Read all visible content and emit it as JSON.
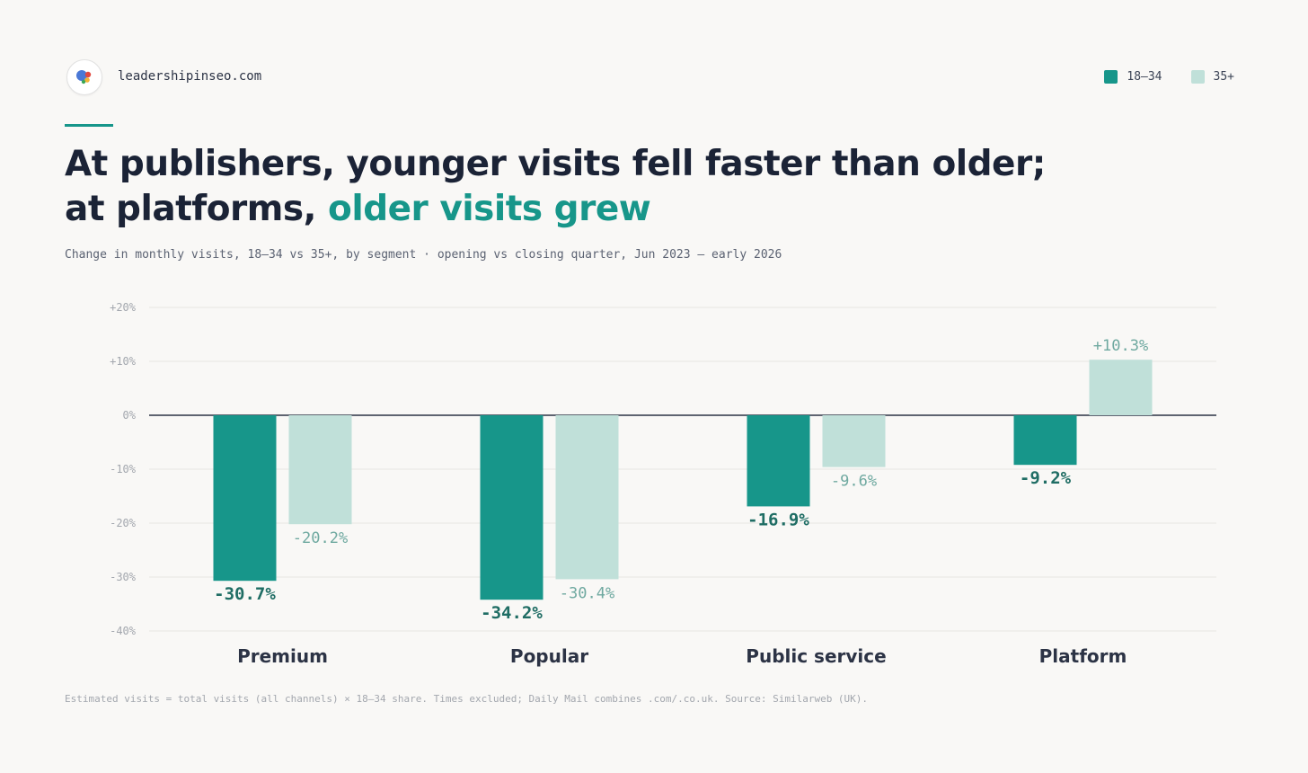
{
  "header": {
    "site": "leadershipinseo.com",
    "logo_icon": "circle-logo-icon"
  },
  "legend": [
    {
      "label": "18–34",
      "color": "#17968a"
    },
    {
      "label": "35+",
      "color": "#c0e0d9"
    }
  ],
  "title": {
    "line1": "At publishers, younger visits fell faster than older;",
    "line2_plain": "at platforms, ",
    "line2_highlight": "older visits grew",
    "highlight_color": "#17968a"
  },
  "subtitle": "Change in monthly visits, 18–34 vs 35+, by segment · opening vs closing quarter, Jun 2023 – early 2026",
  "footnote": "Estimated visits = total visits (all channels) × 18–34 share. Times excluded; Daily Mail combines .com/.co.uk. Source: Similarweb (UK).",
  "chart_data": {
    "type": "bar",
    "categories": [
      "Premium",
      "Popular",
      "Public service",
      "Platform"
    ],
    "series": [
      {
        "name": "18–34",
        "values": [
          -30.7,
          -34.2,
          -16.9,
          -9.2
        ],
        "color": "#17968a",
        "label_color": "#1f6d64"
      },
      {
        "name": "35+",
        "values": [
          -20.2,
          -30.4,
          -9.6,
          10.3
        ],
        "color": "#c0e0d9",
        "label_color": "#6fa9a0"
      }
    ],
    "value_labels": [
      [
        "-30.7%",
        "-34.2%",
        "-16.9%",
        "-9.2%"
      ],
      [
        "-20.2%",
        "-30.4%",
        "-9.6%",
        "+10.3%"
      ]
    ],
    "ylim": [
      -40,
      20
    ],
    "yticks": [
      20,
      10,
      0,
      -10,
      -20,
      -30,
      -40
    ],
    "ytick_labels": [
      "+20%",
      "+10%",
      "0%",
      "-10%",
      "-20%",
      "-30%",
      "-40%"
    ],
    "grid": true,
    "legend_position": "top-right"
  }
}
